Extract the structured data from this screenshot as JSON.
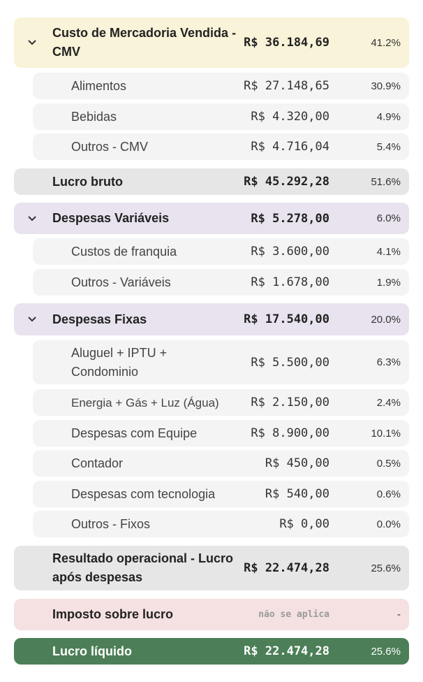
{
  "rows": {
    "cmv": {
      "label": "Custo de Mercadoria Vendida - CMV",
      "value": "R$ 36.184,69",
      "pct": "41.2%",
      "icon": "chevron-down-icon"
    },
    "alimentos": {
      "label": "Alimentos",
      "value": "R$ 27.148,65",
      "pct": "30.9%"
    },
    "bebidas": {
      "label": "Bebidas",
      "value": "R$ 4.320,00",
      "pct": "4.9%"
    },
    "outros_cmv": {
      "label": "Outros - CMV",
      "value": "R$ 4.716,04",
      "pct": "5.4%"
    },
    "lucro_bruto": {
      "label": "Lucro bruto",
      "value": "R$ 45.292,28",
      "pct": "51.6%"
    },
    "desp_var": {
      "label": "Despesas Variáveis",
      "value": "R$ 5.278,00",
      "pct": "6.0%",
      "icon": "chevron-down-icon"
    },
    "franquia": {
      "label": "Custos de franquia",
      "value": "R$ 3.600,00",
      "pct": "4.1%"
    },
    "outros_var": {
      "label": "Outros - Variáveis",
      "value": "R$ 1.678,00",
      "pct": "1.9%"
    },
    "desp_fix": {
      "label": "Despesas Fixas",
      "value": "R$ 17.540,00",
      "pct": "20.0%",
      "icon": "chevron-down-icon"
    },
    "aluguel": {
      "label": "Aluguel + IPTU + Condominio",
      "value": "R$ 5.500,00",
      "pct": "6.3%"
    },
    "energia": {
      "label": "Energia + Gás + Luz (Água)",
      "value": "R$ 2.150,00",
      "pct": "2.4%"
    },
    "equipe": {
      "label": "Despesas com Equipe",
      "value": "R$ 8.900,00",
      "pct": "10.1%"
    },
    "contador": {
      "label": "Contador",
      "value": "R$ 450,00",
      "pct": "0.5%"
    },
    "tecnologia": {
      "label": "Despesas com tecnologia",
      "value": "R$ 540,00",
      "pct": "0.6%"
    },
    "outros_fix": {
      "label": "Outros - Fixos",
      "value": "R$ 0,00",
      "pct": "0.0%"
    },
    "resultado": {
      "label": "Resultado operacional - Lucro após despesas",
      "value": "R$ 22.474,28",
      "pct": "25.6%"
    },
    "imposto": {
      "label": "Imposto sobre lucro",
      "value": "não se aplica",
      "pct": "-"
    },
    "liquido": {
      "label": "Lucro líquido",
      "value": "R$ 22.474,28",
      "pct": "25.6%"
    }
  },
  "colors": {
    "cmv_bg": "#f8f3d9",
    "total_bg": "#e6e6e6",
    "expense_bg": "#e8e3ee",
    "tax_bg": "#f5e1e1",
    "net_bg": "#4c7f57",
    "sub_bg": "#f4f4f4"
  }
}
